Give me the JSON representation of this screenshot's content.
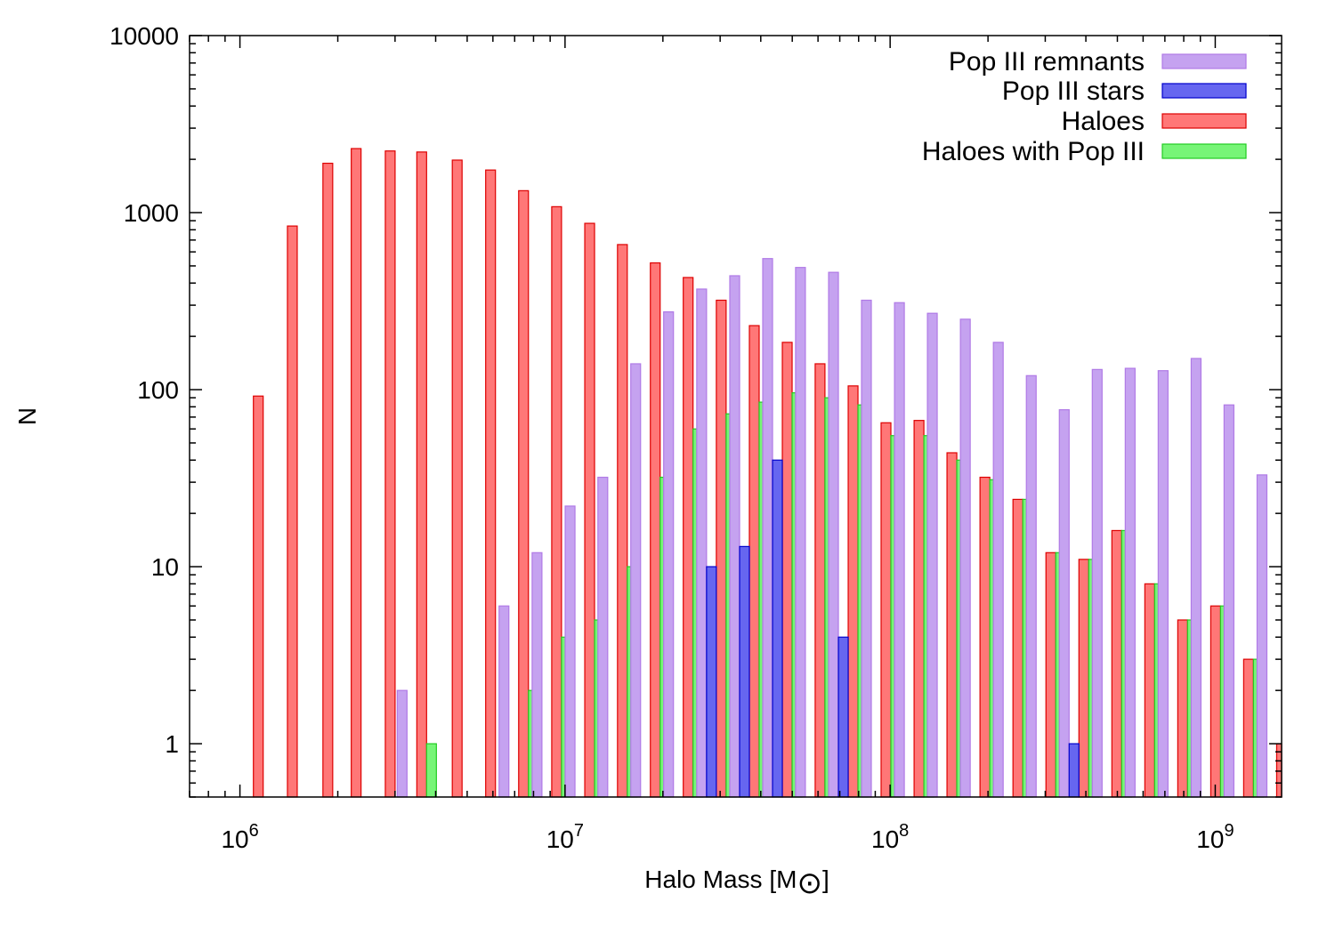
{
  "chart_data": {
    "type": "bar",
    "xscale": "log",
    "yscale": "log",
    "xlabel": "Halo Mass [M",
    "xlabel_symbol": "⊙",
    "xlabel_suffix": "]",
    "ylabel": "N",
    "xlim": [
      700000,
      1600000000
    ],
    "ylim": [
      0.5,
      10000
    ],
    "yticks": [
      {
        "value": 1,
        "label": "1"
      },
      {
        "value": 10,
        "label": "10"
      },
      {
        "value": 100,
        "label": "100"
      },
      {
        "value": 1000,
        "label": "1000"
      },
      {
        "value": 10000,
        "label": "10000"
      }
    ],
    "xticks": [
      {
        "value": 1000000,
        "base": "10",
        "exp": "6"
      },
      {
        "value": 10000000,
        "base": "10",
        "exp": "7"
      },
      {
        "value": 100000000,
        "base": "10",
        "exp": "8"
      },
      {
        "value": 1000000000,
        "base": "10",
        "exp": "9"
      }
    ],
    "grid": false,
    "legend_position": "top-right",
    "bin_centers": [
      1100000,
      1400000,
      1800000,
      2200000,
      2800000,
      3500000,
      4500000,
      5700000,
      7200000,
      9100000,
      11500000,
      14500000,
      18300000,
      23100000,
      29200000,
      36900000,
      46600000,
      58800000,
      74300000,
      93800000,
      118500000,
      149600000,
      189000000,
      238700000,
      301500000,
      380800000,
      480900000,
      607400000,
      767000000,
      968800000,
      1223000000,
      1545000000
    ],
    "series": [
      {
        "name": "Pop III remnants",
        "color": "#c5a2f0",
        "stroke": "#b07ae6",
        "values": [
          0,
          0,
          0,
          0,
          0,
          2,
          0,
          0,
          6,
          12,
          22,
          32,
          140,
          275,
          370,
          440,
          550,
          490,
          460,
          320,
          310,
          270,
          250,
          185,
          120,
          77,
          130,
          132,
          128,
          150,
          82,
          33
        ]
      },
      {
        "name": "Pop III stars",
        "color": "#6666f0",
        "stroke": "#0000cc",
        "values": [
          0,
          0,
          0,
          0,
          0,
          0,
          0,
          0,
          0,
          0,
          0,
          0,
          0,
          0,
          10,
          13,
          40,
          0,
          4,
          0,
          0,
          0,
          0,
          0,
          0,
          1,
          0,
          0,
          0,
          0,
          0,
          0
        ]
      },
      {
        "name": "Haloes",
        "color": "#ff7777",
        "stroke": "#dd0000",
        "values": [
          92,
          840,
          1900,
          2300,
          2230,
          2200,
          1980,
          1740,
          1330,
          1080,
          870,
          660,
          520,
          430,
          320,
          230,
          185,
          140,
          105,
          65,
          67,
          44,
          32,
          24,
          12,
          11,
          16,
          8,
          5,
          6,
          3,
          1
        ]
      },
      {
        "name": "Haloes with Pop III",
        "color": "#77f577",
        "stroke": "#22cc22",
        "values": [
          0,
          0,
          0,
          0,
          0,
          1,
          0,
          0,
          2,
          4,
          5,
          10,
          32,
          60,
          73,
          85,
          96,
          90,
          82,
          55,
          55,
          40,
          31,
          24,
          12,
          11,
          16,
          8,
          5,
          6,
          3,
          1
        ]
      }
    ]
  }
}
